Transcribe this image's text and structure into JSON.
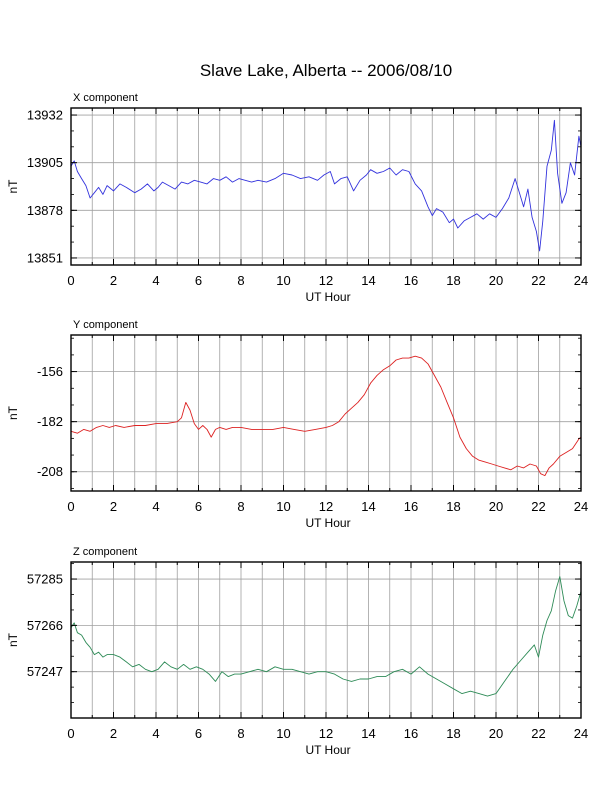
{
  "title": "Slave Lake, Alberta -- 2006/08/10",
  "chart_data": [
    {
      "type": "line",
      "title": "X component",
      "xlabel": "UT Hour",
      "ylabel": "nT",
      "xlim": [
        0,
        24
      ],
      "ylim": [
        13847,
        13936
      ],
      "xticks": [
        0,
        2,
        4,
        6,
        8,
        10,
        12,
        14,
        16,
        18,
        20,
        22,
        24
      ],
      "yticks": [
        13851,
        13878,
        13905,
        13932
      ],
      "grid": true,
      "series": [
        {
          "color": "#3333dd",
          "x": [
            0,
            0.15,
            0.3,
            0.5,
            0.7,
            0.9,
            1.1,
            1.3,
            1.5,
            1.7,
            2.0,
            2.3,
            2.6,
            3.0,
            3.3,
            3.6,
            3.9,
            4.1,
            4.3,
            4.6,
            4.9,
            5.2,
            5.5,
            5.8,
            6.1,
            6.4,
            6.7,
            7.0,
            7.3,
            7.6,
            7.9,
            8.2,
            8.5,
            8.8,
            9.2,
            9.6,
            10.0,
            10.4,
            10.8,
            11.2,
            11.6,
            11.9,
            12.2,
            12.4,
            12.7,
            13.0,
            13.3,
            13.6,
            13.9,
            14.1,
            14.4,
            14.7,
            15.0,
            15.3,
            15.6,
            15.9,
            16.2,
            16.5,
            16.8,
            17.0,
            17.2,
            17.5,
            17.8,
            18.0,
            18.2,
            18.5,
            18.8,
            19.1,
            19.4,
            19.7,
            20.0,
            20.3,
            20.6,
            20.9,
            21.1,
            21.3,
            21.5,
            21.7,
            21.9,
            22.05,
            22.2,
            22.4,
            22.6,
            22.75,
            22.9,
            23.1,
            23.3,
            23.5,
            23.7,
            23.9,
            24.0
          ],
          "y": [
            13903,
            13906,
            13900,
            13896,
            13892,
            13885,
            13888,
            13891,
            13887,
            13892,
            13889,
            13893,
            13891,
            13888,
            13890,
            13893,
            13889,
            13891,
            13894,
            13892,
            13890,
            13894,
            13893,
            13895,
            13894,
            13893,
            13896,
            13895,
            13897,
            13894,
            13896,
            13895,
            13894,
            13895,
            13894,
            13896,
            13899,
            13898,
            13896,
            13897,
            13895,
            13898,
            13900,
            13893,
            13896,
            13897,
            13889,
            13895,
            13898,
            13901,
            13899,
            13900,
            13902,
            13898,
            13901,
            13900,
            13893,
            13889,
            13880,
            13875,
            13879,
            13877,
            13871,
            13873,
            13868,
            13872,
            13874,
            13876,
            13873,
            13876,
            13874,
            13879,
            13885,
            13896,
            13888,
            13880,
            13890,
            13874,
            13866,
            13855,
            13872,
            13903,
            13912,
            13929,
            13899,
            13882,
            13888,
            13905,
            13898,
            13920,
            13914
          ]
        }
      ]
    },
    {
      "type": "line",
      "title": "Y component",
      "xlabel": "UT Hour",
      "ylabel": "nT",
      "xlim": [
        0,
        24
      ],
      "ylim": [
        -218,
        -137
      ],
      "xticks": [
        0,
        2,
        4,
        6,
        8,
        10,
        12,
        14,
        16,
        18,
        20,
        22,
        24
      ],
      "yticks": [
        -208,
        -182,
        -156
      ],
      "grid": true,
      "series": [
        {
          "color": "#dd2222",
          "x": [
            0,
            0.3,
            0.6,
            0.9,
            1.2,
            1.5,
            1.8,
            2.1,
            2.5,
            3.0,
            3.5,
            4.0,
            4.5,
            5.0,
            5.2,
            5.4,
            5.6,
            5.8,
            6.0,
            6.2,
            6.4,
            6.6,
            6.8,
            7.0,
            7.3,
            7.6,
            8.0,
            8.5,
            9.0,
            9.5,
            10.0,
            10.5,
            11.0,
            11.5,
            12.0,
            12.3,
            12.6,
            12.9,
            13.2,
            13.5,
            13.8,
            14.1,
            14.4,
            14.7,
            15.0,
            15.3,
            15.6,
            15.9,
            16.2,
            16.5,
            16.8,
            17.1,
            17.4,
            17.7,
            18.0,
            18.3,
            18.6,
            18.9,
            19.2,
            19.5,
            19.8,
            20.1,
            20.4,
            20.7,
            21.0,
            21.3,
            21.6,
            21.9,
            22.1,
            22.3,
            22.5,
            22.7,
            23.0,
            23.3,
            23.6,
            23.9,
            24.0
          ],
          "y": [
            -187,
            -188,
            -186,
            -187,
            -185,
            -184,
            -185,
            -184,
            -185,
            -184,
            -184,
            -183,
            -183,
            -182,
            -180,
            -172,
            -176,
            -183,
            -186,
            -184,
            -186,
            -190,
            -186,
            -185,
            -186,
            -185,
            -185,
            -186,
            -186,
            -186,
            -185,
            -186,
            -187,
            -186,
            -185,
            -184,
            -182,
            -178,
            -175,
            -172,
            -168,
            -162,
            -158,
            -155,
            -153,
            -150,
            -149,
            -149,
            -148,
            -149,
            -152,
            -158,
            -164,
            -172,
            -180,
            -190,
            -196,
            -200,
            -202,
            -203,
            -204,
            -205,
            -206,
            -207,
            -205,
            -206,
            -204,
            -205,
            -209,
            -210,
            -206,
            -204,
            -200,
            -198,
            -196,
            -191,
            -190
          ]
        }
      ]
    },
    {
      "type": "line",
      "title": "Z component",
      "xlabel": "UT Hour",
      "ylabel": "nT",
      "xlim": [
        0,
        24
      ],
      "ylim": [
        57228,
        57292
      ],
      "xticks": [
        0,
        2,
        4,
        6,
        8,
        10,
        12,
        14,
        16,
        18,
        20,
        22,
        24
      ],
      "yticks": [
        57247,
        57266,
        57285
      ],
      "grid": true,
      "series": [
        {
          "color": "#2e8b57",
          "x": [
            0,
            0.15,
            0.3,
            0.5,
            0.7,
            0.9,
            1.1,
            1.3,
            1.5,
            1.7,
            2.0,
            2.3,
            2.6,
            2.9,
            3.2,
            3.5,
            3.8,
            4.1,
            4.4,
            4.7,
            5.0,
            5.3,
            5.6,
            5.9,
            6.2,
            6.5,
            6.8,
            7.1,
            7.4,
            7.7,
            8.0,
            8.4,
            8.8,
            9.2,
            9.6,
            10.0,
            10.4,
            10.8,
            11.2,
            11.6,
            12.0,
            12.4,
            12.8,
            13.2,
            13.6,
            14.0,
            14.4,
            14.8,
            15.2,
            15.6,
            16.0,
            16.4,
            16.8,
            17.2,
            17.6,
            18.0,
            18.4,
            18.8,
            19.2,
            19.6,
            20.0,
            20.4,
            20.8,
            21.2,
            21.5,
            21.8,
            22.0,
            22.2,
            22.4,
            22.6,
            22.8,
            23.0,
            23.2,
            23.4,
            23.6,
            23.8,
            24.0
          ],
          "y": [
            57265,
            57267,
            57263,
            57262,
            57259,
            57257,
            57254,
            57255,
            57253,
            57254,
            57254,
            57253,
            57251,
            57249,
            57250,
            57248,
            57247,
            57248,
            57251,
            57249,
            57248,
            57250,
            57248,
            57249,
            57248,
            57246,
            57243,
            57247,
            57245,
            57246,
            57246,
            57247,
            57248,
            57247,
            57249,
            57248,
            57248,
            57247,
            57246,
            57247,
            57247,
            57246,
            57244,
            57243,
            57244,
            57244,
            57245,
            57245,
            57247,
            57248,
            57246,
            57249,
            57246,
            57244,
            57242,
            57240,
            57238,
            57239,
            57238,
            57237,
            57238,
            57243,
            57248,
            57252,
            57255,
            57258,
            57253,
            57262,
            57268,
            57272,
            57280,
            57286,
            57276,
            57270,
            57269,
            57274,
            57280
          ]
        }
      ]
    }
  ]
}
